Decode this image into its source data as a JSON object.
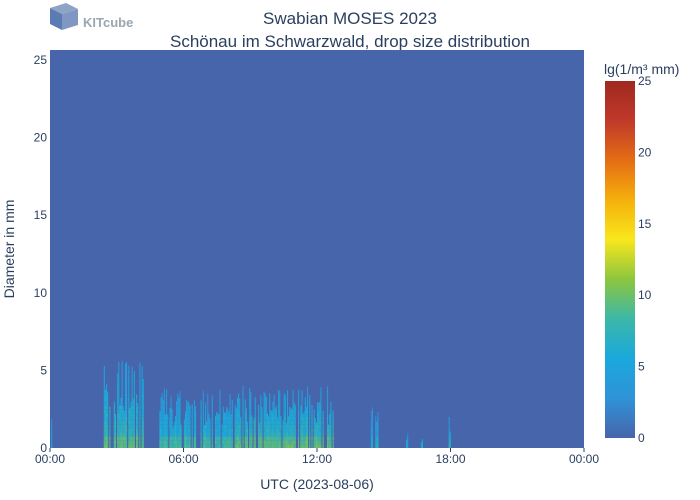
{
  "logo": {
    "text": "KITcube"
  },
  "chart_data": {
    "type": "heatmap",
    "title": "Swabian MOSES 2023",
    "subtitle": "Schönau im Schwarzwald, drop size distribution",
    "xlabel": "UTC (2023-08-06)",
    "ylabel": "Diameter in mm",
    "x_range": [
      "2023-08-06 00:00",
      "2023-08-07 00:00"
    ],
    "x_ticks": [
      "00:00",
      "06:00",
      "12:00",
      "18:00",
      "00:00"
    ],
    "y_range": [
      0,
      26
    ],
    "y_ticks": [
      0,
      5,
      10,
      15,
      20,
      25
    ],
    "colorbar": {
      "title": "lg(1/m³ mm)",
      "range": [
        0,
        25
      ],
      "ticks": [
        0,
        5,
        10,
        15,
        20,
        25
      ],
      "colorscale": [
        "#4665ab",
        "#2f93d8",
        "#1aa8dc",
        "#3cb8a8",
        "#8cc63f",
        "#f8e71c",
        "#f5b00b",
        "#e46d14",
        "#c0392b",
        "#a0291e"
      ]
    },
    "background_value": 0,
    "rain_events": [
      {
        "start": "00:00",
        "end": "00:05",
        "max_diameter": 3.5,
        "peak_value": 5
      },
      {
        "start": "02:25",
        "end": "04:15",
        "max_diameter": 6.0,
        "peak_value": 9
      },
      {
        "start": "04:55",
        "end": "08:10",
        "max_diameter": 3.9,
        "peak_value": 8
      },
      {
        "start": "08:15",
        "end": "12:45",
        "max_diameter": 4.0,
        "peak_value": 9
      },
      {
        "start": "14:25",
        "end": "14:45",
        "max_diameter": 2.9,
        "peak_value": 6
      },
      {
        "start": "16:00",
        "end": "16:05",
        "max_diameter": 1.0,
        "peak_value": 5
      },
      {
        "start": "16:40",
        "end": "16:45",
        "max_diameter": 0.8,
        "peak_value": 5
      },
      {
        "start": "17:55",
        "end": "18:00",
        "max_diameter": 2.2,
        "peak_value": 7
      }
    ]
  }
}
